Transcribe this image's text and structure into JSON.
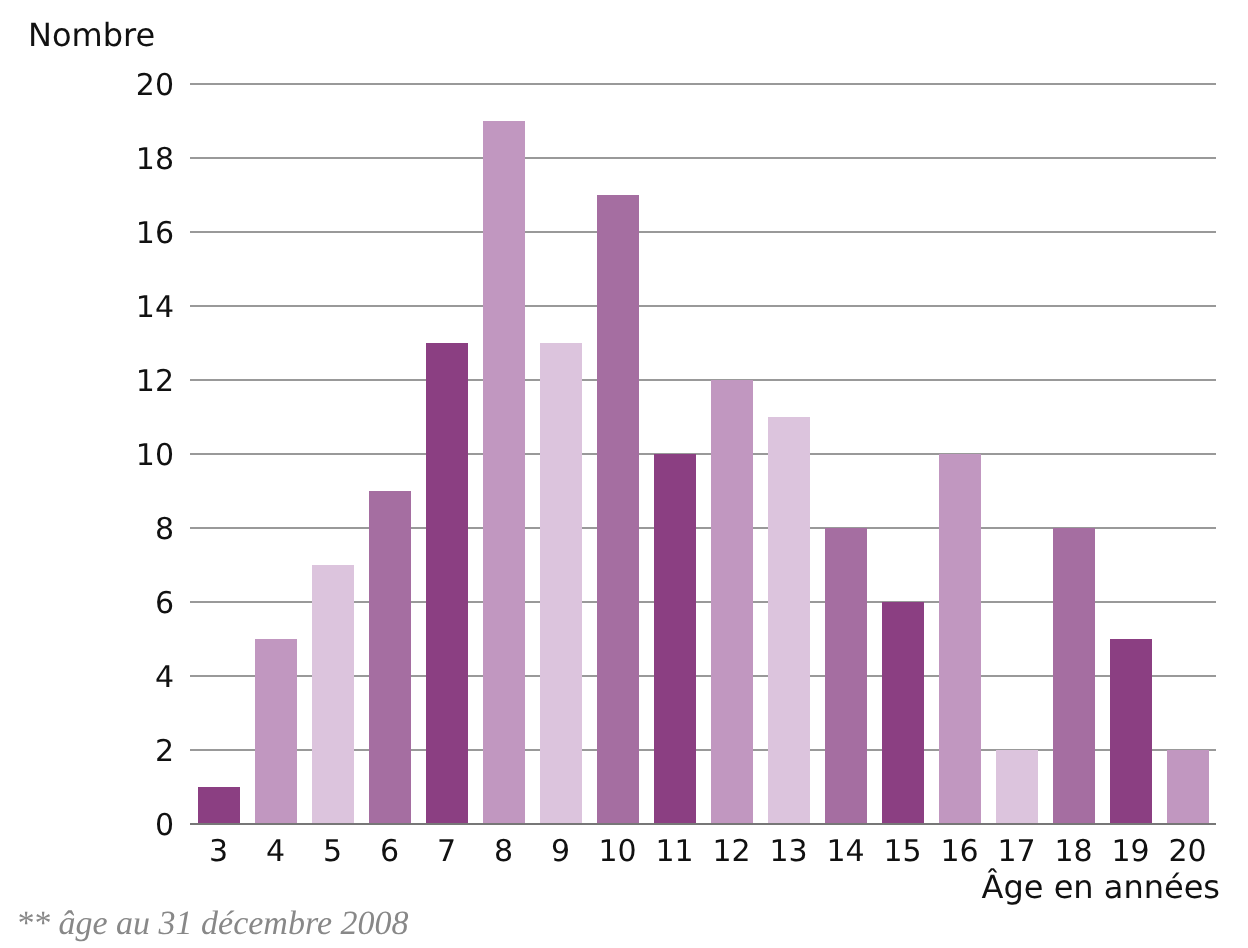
{
  "chart_data": {
    "type": "bar",
    "ylabel": "Nombre",
    "xlabel": "Âge en années",
    "annotations": [
      "** âge au 31 décembre 2008"
    ],
    "categories": [
      "3",
      "4",
      "5",
      "6",
      "7",
      "8",
      "9",
      "10",
      "11",
      "12",
      "13",
      "14",
      "15",
      "16",
      "17",
      "18",
      "19",
      "20"
    ],
    "values": [
      1,
      5,
      7,
      9,
      13,
      19,
      13,
      17,
      10,
      12,
      11,
      8,
      6,
      10,
      2,
      8,
      5,
      2
    ],
    "colors": [
      "#8b3f82",
      "#c197c0",
      "#dcc4dd",
      "#a56ea1",
      "#8b3f82",
      "#c197c0",
      "#dcc4dd",
      "#a56ea1",
      "#8b3f82",
      "#c197c0",
      "#dcc4dd",
      "#a56ea1",
      "#8b3f82",
      "#c197c0",
      "#dcc4dd",
      "#a56ea1",
      "#8b3f82",
      "#c197c0"
    ],
    "ylim": [
      0,
      20
    ],
    "yticks": [
      0,
      2,
      4,
      6,
      8,
      10,
      12,
      14,
      16,
      18,
      20
    ],
    "grid": "y"
  }
}
